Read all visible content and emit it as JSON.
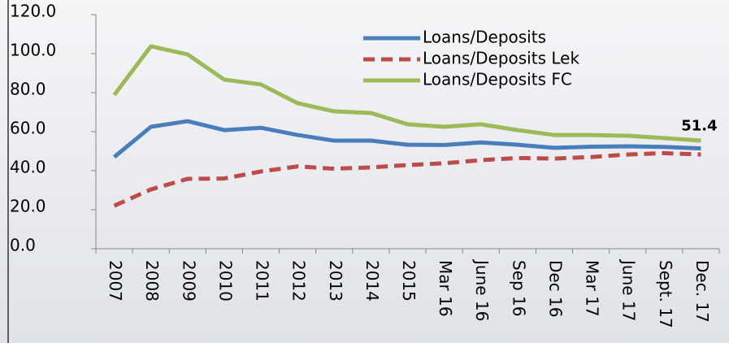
{
  "chart_data": {
    "type": "line",
    "categories": [
      "2007",
      "2008",
      "2009",
      "2010",
      "2011",
      "2012",
      "2013",
      "2014",
      "2015",
      "Mar 16",
      "June 16",
      "Sep 16",
      "Dec 16",
      "Mar 17",
      "June 17",
      "Sept. 17",
      "Dec. 17"
    ],
    "series": [
      {
        "name": "Loans/Deposits",
        "color": "#4a7ebb",
        "dash": false,
        "values": [
          47,
          62.5,
          65.4,
          60.8,
          62,
          58.3,
          55.4,
          55.4,
          53.3,
          53.2,
          54.5,
          53.3,
          51.7,
          52.3,
          52.5,
          52.2,
          51.4
        ],
        "value_labels": [
          null,
          null,
          null,
          null,
          null,
          null,
          null,
          null,
          null,
          null,
          null,
          null,
          null,
          null,
          null,
          null,
          "51.4"
        ]
      },
      {
        "name": "Loans/Deposits Lek",
        "color": "#be4b48",
        "dash": true,
        "values": [
          22,
          30.4,
          35.8,
          36,
          39.6,
          42.2,
          41,
          41.7,
          42.9,
          43.8,
          45.4,
          46.5,
          46.2,
          47,
          48.3,
          49,
          48.3
        ]
      },
      {
        "name": "Loans/Deposits FC",
        "color": "#9bbb59",
        "dash": false,
        "values": [
          78.8,
          103.8,
          99.6,
          86.7,
          84.2,
          74.6,
          70.4,
          69.6,
          63.8,
          62.5,
          63.8,
          60.8,
          58.3,
          58.3,
          57.9,
          56.7,
          55.4
        ]
      }
    ],
    "ylim": [
      0,
      120
    ],
    "yticks": [
      {
        "value": 0,
        "label": "0.0"
      },
      {
        "value": 20,
        "label": "20.0"
      },
      {
        "value": 40,
        "label": "40.0"
      },
      {
        "value": 60,
        "label": "60.0"
      },
      {
        "value": 80,
        "label": "80.0"
      },
      {
        "value": 100,
        "label": "100.0"
      },
      {
        "value": 120,
        "label": "120.0"
      }
    ],
    "grid": false
  }
}
